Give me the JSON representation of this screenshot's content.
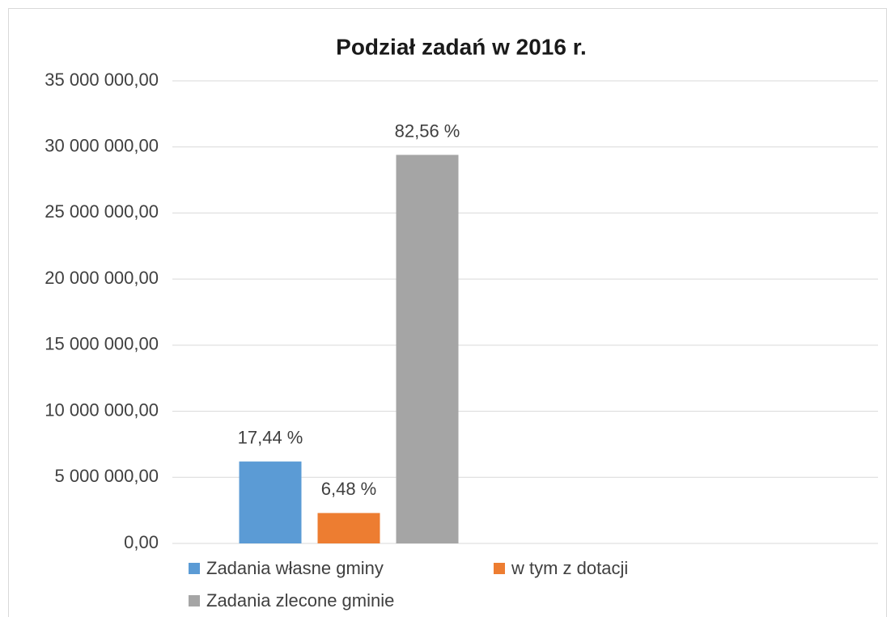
{
  "chart_data": {
    "type": "bar",
    "title": "Podział zadań w 2016 r.",
    "categories": [
      null,
      null
    ],
    "series": [
      {
        "name": "Zadania własne gminy",
        "color": "#5b9bd5",
        "values": [
          6200000,
          null
        ]
      },
      {
        "name": "w tym z dotacji",
        "color": "#ed7d31",
        "values": [
          2300000,
          null
        ]
      },
      {
        "name": "Zadania zlecone gminie",
        "color": "#a5a5a5",
        "values": [
          29400000,
          null
        ]
      }
    ],
    "annotations": [
      "17,44 %",
      "6,48 %",
      "82,56 %"
    ],
    "ylim": [
      0,
      35000000
    ],
    "yticks": [
      {
        "value": 0,
        "label": "0,00"
      },
      {
        "value": 5000000,
        "label": "5 000 000,00"
      },
      {
        "value": 10000000,
        "label": "10 000 000,00"
      },
      {
        "value": 15000000,
        "label": "15 000 000,00"
      },
      {
        "value": 20000000,
        "label": "20 000 000,00"
      },
      {
        "value": 25000000,
        "label": "25 000 000,00"
      },
      {
        "value": 30000000,
        "label": "30 000 000,00"
      },
      {
        "value": 35000000,
        "label": "35 000 000,00"
      }
    ],
    "grid": true,
    "legend": "bottom"
  }
}
